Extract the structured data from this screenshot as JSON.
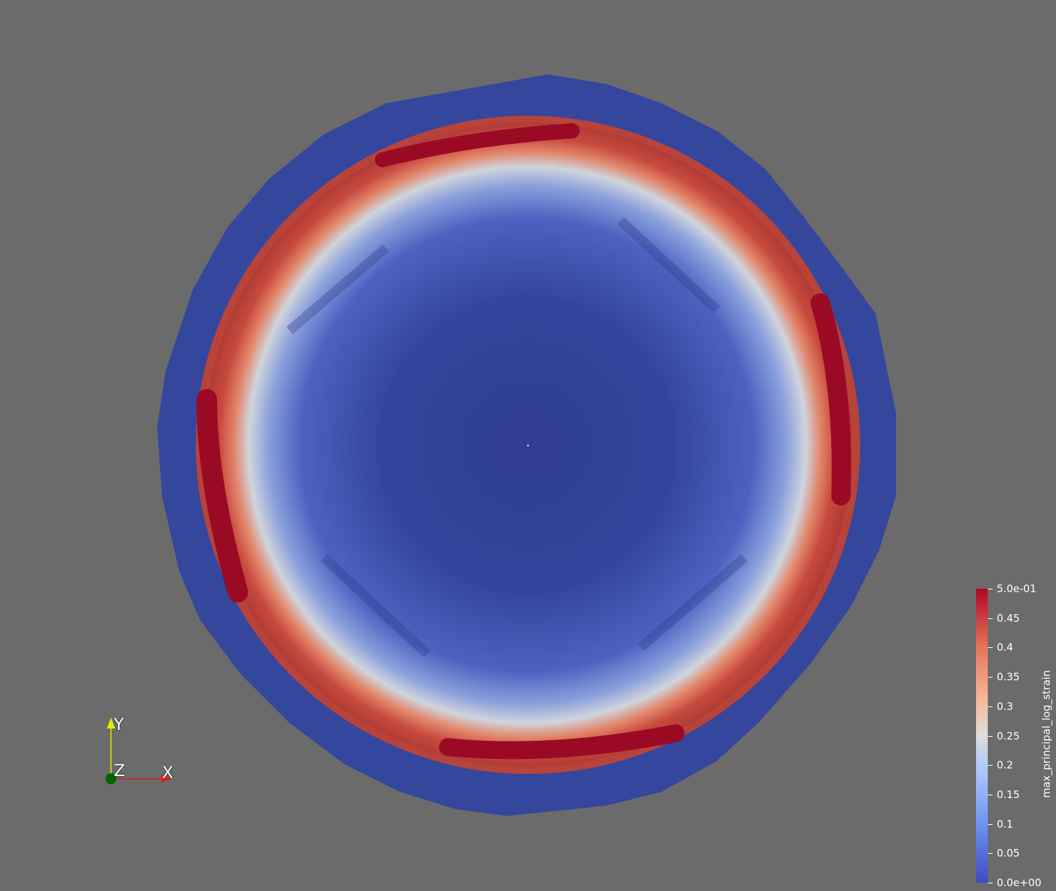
{
  "viewport": {
    "background": "#6b6b6b",
    "scalar_field": "max_principal_log_strain"
  },
  "colorbar": {
    "title": "max_principal_log_strain",
    "range": [
      0.0,
      0.5
    ],
    "colormap": "Cool to Warm",
    "colors": [
      "#3b4cc0",
      "#b40426"
    ],
    "ticks": [
      {
        "value": 0.5,
        "label": "5.0e-01"
      },
      {
        "value": 0.45,
        "label": "0.45"
      },
      {
        "value": 0.4,
        "label": "0.4"
      },
      {
        "value": 0.35,
        "label": "0.35"
      },
      {
        "value": 0.3,
        "label": "0.3"
      },
      {
        "value": 0.25,
        "label": "0.25"
      },
      {
        "value": 0.2,
        "label": "0.2"
      },
      {
        "value": 0.15,
        "label": "0.15"
      },
      {
        "value": 0.1,
        "label": "0.1"
      },
      {
        "value": 0.05,
        "label": "0.05"
      },
      {
        "value": 0.0,
        "label": "0.0e+00"
      }
    ]
  },
  "orientation_axes": {
    "x_label": "X",
    "y_label": "Y",
    "z_label": "Z",
    "x_color": "#d42020",
    "y_color": "#e8e800",
    "z_color": "#006400"
  }
}
